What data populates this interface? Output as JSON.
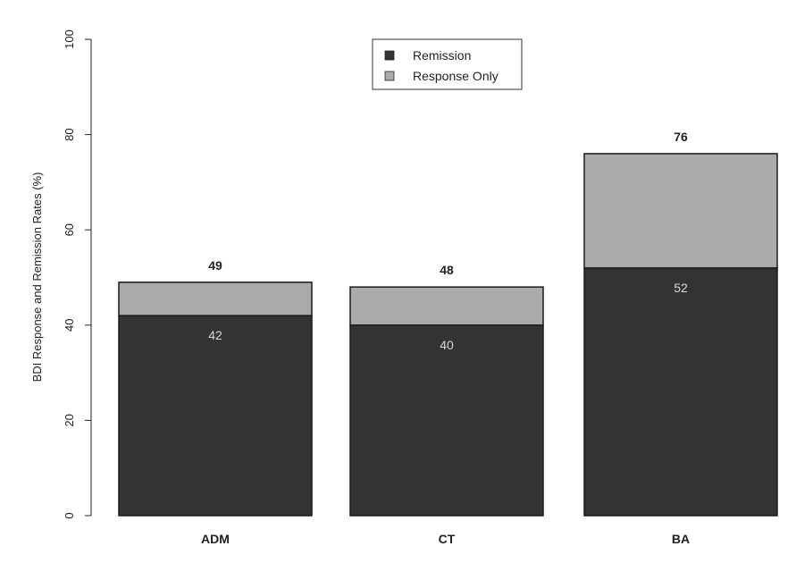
{
  "chart_data": {
    "type": "bar",
    "stacked": true,
    "title": "",
    "xlabel": "",
    "ylabel": "BDI Response and Remission Rates (%)",
    "ylim": [
      0,
      100
    ],
    "yticks": [
      "0",
      "20",
      "40",
      "60",
      "80",
      "100"
    ],
    "categories": [
      "ADM",
      "CT",
      "BA"
    ],
    "series": [
      {
        "name": "Remission",
        "values": [
          42,
          40,
          52
        ],
        "labels": [
          "42",
          "40",
          "52"
        ],
        "color": "#333333"
      },
      {
        "name": "Response Only",
        "values": [
          7,
          8,
          24
        ],
        "color": "#aaaaaa"
      }
    ],
    "totals": [
      49,
      48,
      76
    ],
    "total_labels": [
      "49",
      "48",
      "76"
    ],
    "legend": {
      "position": "top-center",
      "entries": [
        "Remission",
        "Response Only"
      ]
    },
    "grid": false
  }
}
